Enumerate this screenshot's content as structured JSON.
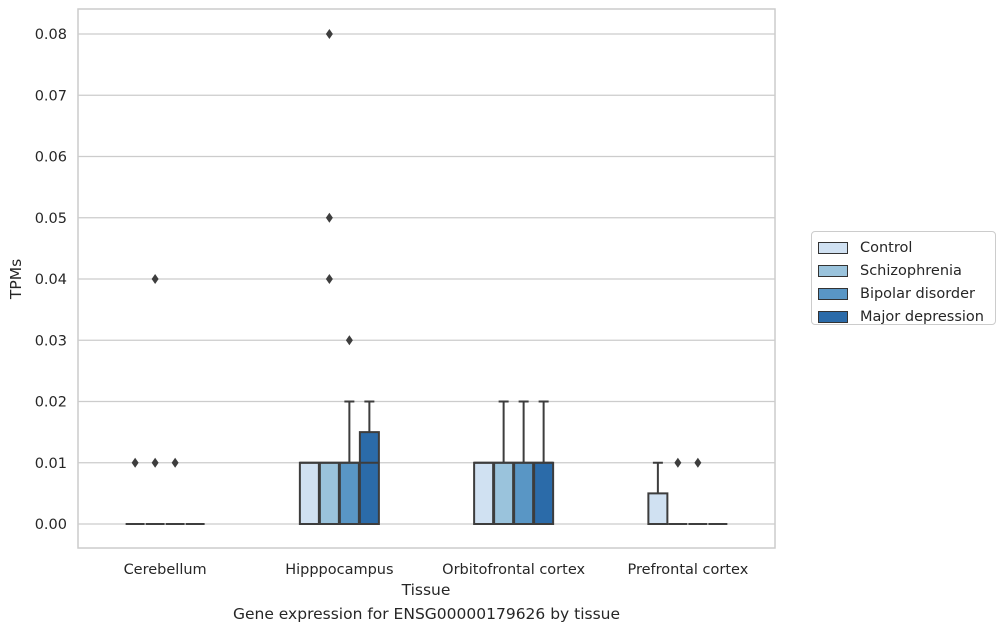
{
  "chart_data": {
    "type": "box",
    "caption": "Gene expression for ENSG00000179626 by tissue",
    "xlabel": "Tissue",
    "ylabel": "TPMs",
    "ylim": [
      -0.004,
      0.084
    ],
    "yticks": [
      0.0,
      0.01,
      0.02,
      0.03,
      0.04,
      0.05,
      0.06,
      0.07,
      0.08
    ],
    "ytick_labels": [
      "0.00",
      "0.01",
      "0.02",
      "0.03",
      "0.04",
      "0.05",
      "0.06",
      "0.07",
      "0.08"
    ],
    "categories": [
      "Cerebellum",
      "Hipppocampus",
      "Orbitofrontal cortex",
      "Prefrontal cortex"
    ],
    "grid": true,
    "legend_position": "outside-right",
    "series": [
      {
        "name": "Control",
        "color": "#d0e1f2",
        "boxes": [
          {
            "q1": 0,
            "median": 0,
            "q3": 0,
            "whislo": 0,
            "whishi": 0,
            "fliers": [
              0.01
            ]
          },
          {
            "q1": 0,
            "median": 0.01,
            "q3": 0.01,
            "whislo": 0,
            "whishi": 0.01,
            "fliers": []
          },
          {
            "q1": 0,
            "median": 0.01,
            "q3": 0.01,
            "whislo": 0,
            "whishi": 0.01,
            "fliers": []
          },
          {
            "q1": 0,
            "median": 0,
            "q3": 0.005,
            "whislo": 0,
            "whishi": 0.01,
            "fliers": []
          }
        ]
      },
      {
        "name": "Schizophrenia",
        "color": "#9ac3dc",
        "boxes": [
          {
            "q1": 0,
            "median": 0,
            "q3": 0,
            "whislo": 0,
            "whishi": 0,
            "fliers": [
              0.01,
              0.04
            ]
          },
          {
            "q1": 0,
            "median": 0.01,
            "q3": 0.01,
            "whislo": 0,
            "whishi": 0.01,
            "fliers": [
              0.04,
              0.05,
              0.08
            ]
          },
          {
            "q1": 0,
            "median": 0.01,
            "q3": 0.01,
            "whislo": 0,
            "whishi": 0.02,
            "fliers": []
          },
          {
            "q1": 0,
            "median": 0,
            "q3": 0,
            "whislo": 0,
            "whishi": 0,
            "fliers": [
              0.01
            ]
          }
        ]
      },
      {
        "name": "Bipolar disorder",
        "color": "#5996c5",
        "boxes": [
          {
            "q1": 0,
            "median": 0,
            "q3": 0,
            "whislo": 0,
            "whishi": 0,
            "fliers": [
              0.01
            ]
          },
          {
            "q1": 0,
            "median": 0.01,
            "q3": 0.01,
            "whislo": 0,
            "whishi": 0.02,
            "fliers": [
              0.03
            ]
          },
          {
            "q1": 0,
            "median": 0.01,
            "q3": 0.01,
            "whislo": 0,
            "whishi": 0.02,
            "fliers": []
          },
          {
            "q1": 0,
            "median": 0,
            "q3": 0,
            "whislo": 0,
            "whishi": 0,
            "fliers": [
              0.01
            ]
          }
        ]
      },
      {
        "name": "Major depression",
        "color": "#2b6ba9",
        "boxes": [
          {
            "q1": 0,
            "median": 0,
            "q3": 0,
            "whislo": 0,
            "whishi": 0,
            "fliers": []
          },
          {
            "q1": 0,
            "median": 0.01,
            "q3": 0.015,
            "whislo": 0,
            "whishi": 0.02,
            "fliers": []
          },
          {
            "q1": 0,
            "median": 0.01,
            "q3": 0.01,
            "whislo": 0,
            "whishi": 0.02,
            "fliers": []
          },
          {
            "q1": 0,
            "median": 0,
            "q3": 0,
            "whislo": 0,
            "whishi": 0,
            "fliers": []
          }
        ]
      }
    ]
  }
}
